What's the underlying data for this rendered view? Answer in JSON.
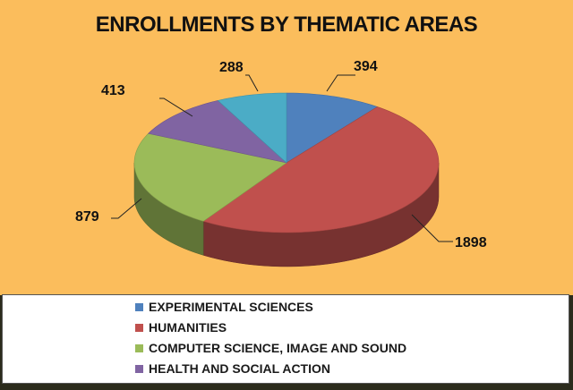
{
  "chart_data": {
    "type": "pie",
    "title": "ENROLLMENTS BY THEMATIC AREAS",
    "categories": [
      "EXPERIMENTAL SCIENCES",
      "HUMANITIES",
      "COMPUTER SCIENCE, IMAGE AND SOUND",
      "HEALTH AND SOCIAL ACTION",
      ""
    ],
    "values": [
      394,
      1898,
      879,
      413,
      288
    ],
    "data_labels": [
      "394",
      "1898",
      "879",
      "413",
      "288"
    ],
    "colors": [
      "#4f81bd",
      "#c0504d",
      "#9bbb59",
      "#8064a2",
      "#4bacc6"
    ],
    "legend_position": "bottom",
    "three_d": true
  }
}
